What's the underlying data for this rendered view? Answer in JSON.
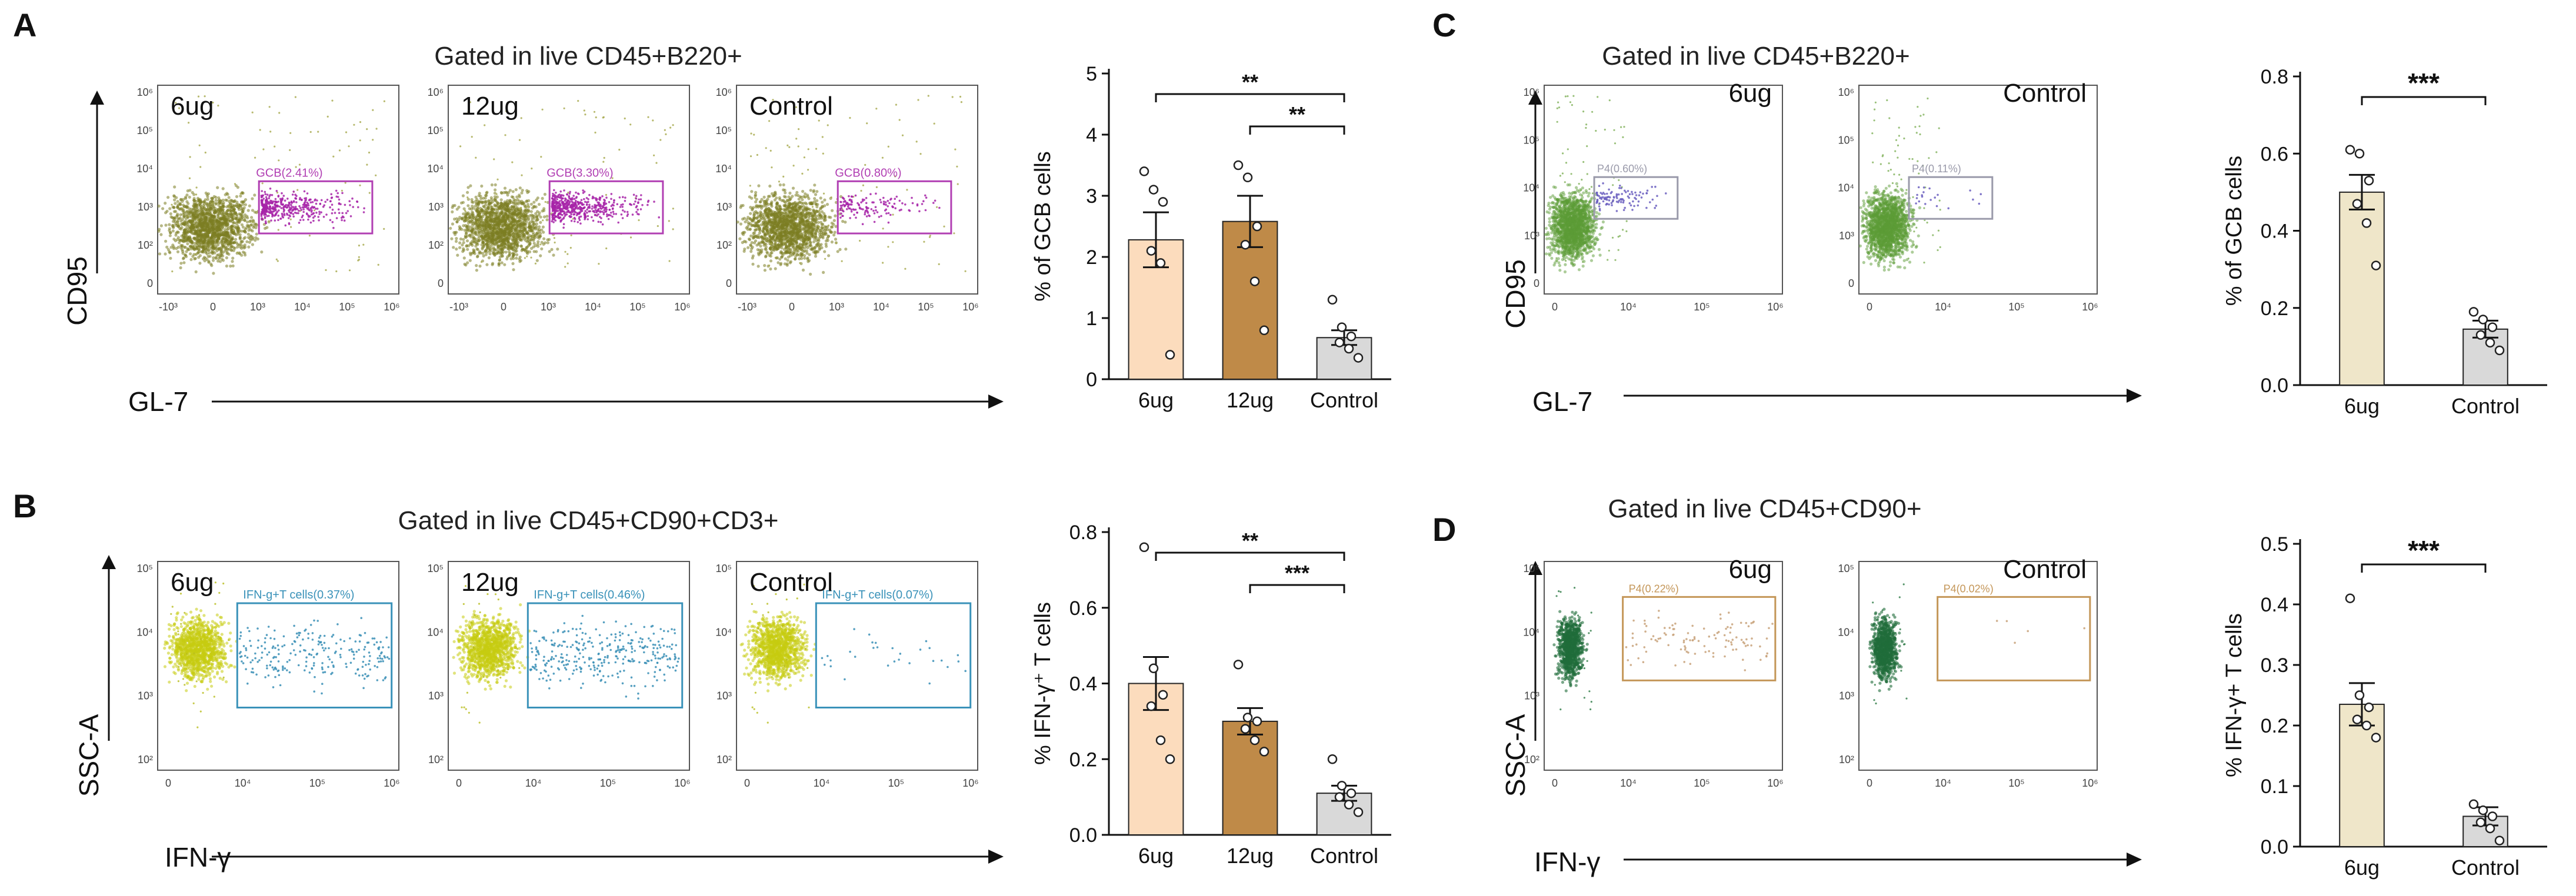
{
  "panels": [
    {
      "id": "A",
      "letter": "A",
      "gate_title": "Gated in live CD45+B220+",
      "y_axis_label": "CD95",
      "x_axis_label": "GL-7",
      "flow_plots": [
        {
          "sample": "6ug",
          "gate_label": "GCB(2.41%)"
        },
        {
          "sample": "12ug",
          "gate_label": "GCB(3.30%)"
        },
        {
          "sample": "Control",
          "gate_label": "GCB(0.80%)"
        }
      ],
      "flow_ticks": {
        "y": [
          "10⁶",
          "10⁵",
          "10⁴",
          "10³",
          "10²",
          "0"
        ],
        "x": [
          "-10³",
          "0",
          "10³",
          "10⁴",
          "10⁵",
          "10⁶"
        ]
      }
    },
    {
      "id": "B",
      "letter": "B",
      "gate_title": "Gated in live CD45+CD90+CD3+",
      "y_axis_label": "SSC-A",
      "x_axis_label": "IFN-γ",
      "flow_plots": [
        {
          "sample": "6ug",
          "gate_label": "IFN-g+T cells(0.37%)"
        },
        {
          "sample": "12ug",
          "gate_label": "IFN-g+T cells(0.46%)"
        },
        {
          "sample": "Control",
          "gate_label": "IFN-g+T cells(0.07%)"
        }
      ],
      "flow_ticks": {
        "y": [
          "10⁵",
          "10⁴",
          "10³",
          "10²"
        ],
        "x": [
          "0",
          "10⁴",
          "10⁵",
          "10⁶"
        ]
      }
    },
    {
      "id": "C",
      "letter": "C",
      "gate_title": "Gated in live CD45+B220+",
      "y_axis_label": "CD95",
      "x_axis_label": "GL-7",
      "flow_plots": [
        {
          "sample": "6ug",
          "gate_label": "P4(0.60%)"
        },
        {
          "sample": "Control",
          "gate_label": "P4(0.11%)"
        }
      ],
      "flow_ticks": {
        "y": [
          "10⁶",
          "10⁵",
          "10⁴",
          "10³",
          "0"
        ],
        "x": [
          "0",
          "10⁴",
          "10⁵",
          "10⁶"
        ]
      }
    },
    {
      "id": "D",
      "letter": "D",
      "gate_title": "Gated in live CD45+CD90+",
      "y_axis_label": "SSC-A",
      "x_axis_label": "IFN-γ",
      "flow_plots": [
        {
          "sample": "6ug",
          "gate_label": "P4(0.22%)"
        },
        {
          "sample": "Control",
          "gate_label": "P4(0.02%)"
        }
      ],
      "flow_ticks": {
        "y": [
          "10⁵",
          "10⁴",
          "10³",
          "10²"
        ],
        "x": [
          "0",
          "10⁴",
          "10⁵",
          "10⁶"
        ]
      }
    }
  ],
  "chart_data": [
    {
      "panel": "A",
      "type": "bar",
      "ylabel": "% of GCB cells",
      "categories": [
        "6ug",
        "12ug",
        "Control"
      ],
      "values": [
        2.28,
        2.58,
        0.68
      ],
      "sem": [
        0.45,
        0.42,
        0.12
      ],
      "points": [
        [
          3.4,
          3.1,
          2.9,
          2.1,
          1.9,
          0.4
        ],
        [
          3.5,
          3.3,
          2.5,
          2.2,
          1.6,
          0.8
        ],
        [
          1.3,
          0.85,
          0.7,
          0.6,
          0.5,
          0.35
        ]
      ],
      "ylim": [
        0,
        5
      ],
      "yticks": [
        "0",
        "1",
        "2",
        "3",
        "4",
        "5"
      ],
      "colors": [
        "#fcdcbd",
        "#bf8a48",
        "#d9d9d9"
      ],
      "significance": [
        {
          "from": 0,
          "to": 2,
          "label": "**"
        },
        {
          "from": 1,
          "to": 2,
          "label": "**"
        }
      ]
    },
    {
      "panel": "B",
      "type": "bar",
      "ylabel": "% IFN-γ⁺ T cells",
      "categories": [
        "6ug",
        "12ug",
        "Control"
      ],
      "values": [
        0.4,
        0.3,
        0.11
      ],
      "sem": [
        0.07,
        0.035,
        0.02
      ],
      "points": [
        [
          0.76,
          0.44,
          0.37,
          0.34,
          0.25,
          0.2
        ],
        [
          0.45,
          0.31,
          0.3,
          0.28,
          0.25,
          0.22
        ],
        [
          0.2,
          0.13,
          0.11,
          0.1,
          0.08,
          0.06
        ]
      ],
      "ylim": [
        0,
        0.8
      ],
      "yticks": [
        "0.0",
        "0.2",
        "0.4",
        "0.6",
        "0.8"
      ],
      "colors": [
        "#fcdcbd",
        "#bf8a48",
        "#d9d9d9"
      ],
      "significance": [
        {
          "from": 0,
          "to": 2,
          "label": "**"
        },
        {
          "from": 1,
          "to": 2,
          "label": "***"
        }
      ]
    },
    {
      "panel": "C",
      "type": "bar",
      "ylabel": "% of GCB cells",
      "categories": [
        "6ug",
        "Control"
      ],
      "values": [
        0.5,
        0.145
      ],
      "sem": [
        0.045,
        0.022
      ],
      "points": [
        [
          0.61,
          0.6,
          0.53,
          0.47,
          0.42,
          0.31
        ],
        [
          0.19,
          0.17,
          0.15,
          0.13,
          0.11,
          0.09
        ]
      ],
      "ylim": [
        0,
        0.8
      ],
      "yticks": [
        "0.0",
        "0.2",
        "0.4",
        "0.6",
        "0.8"
      ],
      "colors": [
        "#efe6c9",
        "#d9d9d9"
      ],
      "significance": [
        {
          "from": 0,
          "to": 1,
          "label": "***"
        }
      ]
    },
    {
      "panel": "D",
      "type": "bar",
      "ylabel": "% IFN-γ+ T cells",
      "categories": [
        "6ug",
        "Control"
      ],
      "values": [
        0.235,
        0.05
      ],
      "sem": [
        0.035,
        0.015
      ],
      "points": [
        [
          0.41,
          0.25,
          0.23,
          0.21,
          0.2,
          0.18
        ],
        [
          0.07,
          0.06,
          0.05,
          0.04,
          0.03,
          0.01
        ]
      ],
      "ylim": [
        0,
        0.5
      ],
      "yticks": [
        "0.0",
        "0.1",
        "0.2",
        "0.3",
        "0.4",
        "0.5"
      ],
      "colors": [
        "#efe6c9",
        "#d9d9d9"
      ],
      "significance": [
        {
          "from": 0,
          "to": 1,
          "label": "***"
        }
      ]
    }
  ]
}
